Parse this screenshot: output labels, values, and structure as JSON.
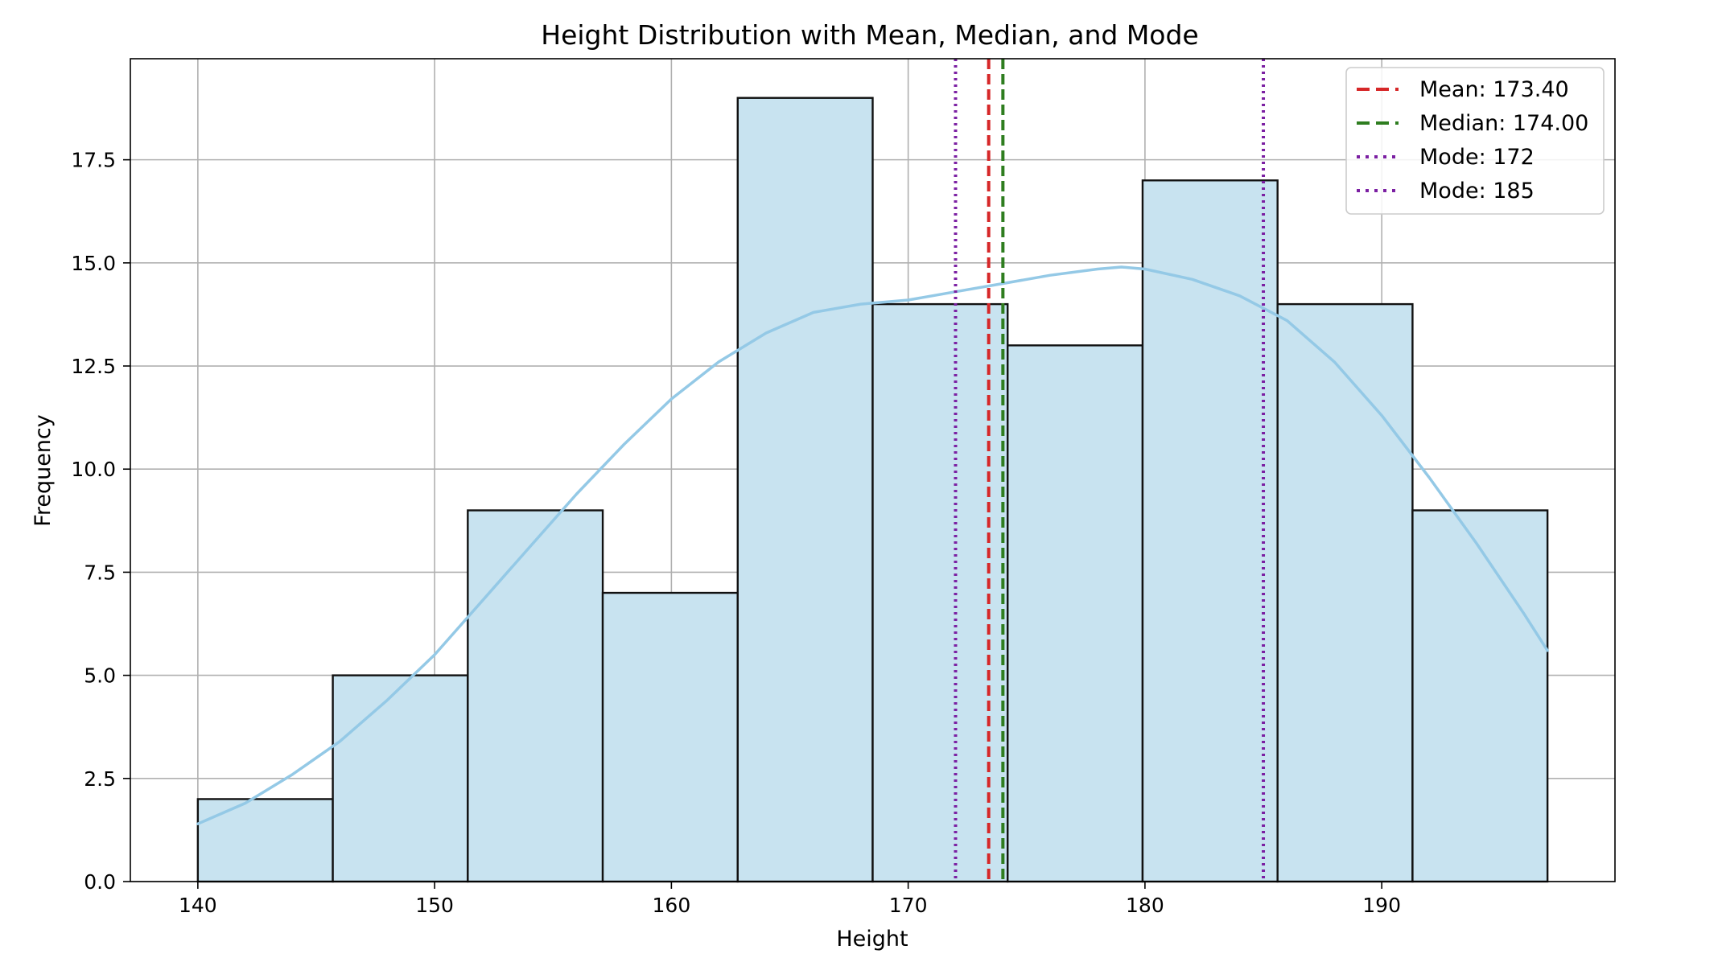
{
  "chart_data": {
    "type": "bar",
    "subtype": "histogram-with-kde",
    "title": "Height Distribution with Mean, Median, and Mode",
    "xlabel": "Height",
    "ylabel": "Frequency",
    "xlim": [
      137.15,
      199.85
    ],
    "ylim": [
      0,
      19.95
    ],
    "grid": true,
    "legend_position": "top-right",
    "x_ticks": [
      140,
      150,
      160,
      170,
      180,
      190
    ],
    "y_ticks": [
      0.0,
      2.5,
      5.0,
      7.5,
      10.0,
      12.5,
      15.0,
      17.5
    ],
    "x_tick_labels": [
      "140",
      "150",
      "160",
      "170",
      "180",
      "190"
    ],
    "y_tick_labels": [
      "0.0",
      "2.5",
      "5.0",
      "7.5",
      "10.0",
      "12.5",
      "15.0",
      "17.5"
    ],
    "bins": [
      {
        "start": 140.0,
        "end": 145.7,
        "count": 2
      },
      {
        "start": 145.7,
        "end": 151.4,
        "count": 5
      },
      {
        "start": 151.4,
        "end": 157.1,
        "count": 9
      },
      {
        "start": 157.1,
        "end": 162.8,
        "count": 7
      },
      {
        "start": 162.8,
        "end": 168.5,
        "count": 19
      },
      {
        "start": 168.5,
        "end": 174.2,
        "count": 14
      },
      {
        "start": 174.2,
        "end": 179.9,
        "count": 13
      },
      {
        "start": 179.9,
        "end": 185.6,
        "count": 17
      },
      {
        "start": 185.6,
        "end": 191.3,
        "count": 14
      },
      {
        "start": 191.3,
        "end": 197.0,
        "count": 9
      }
    ],
    "kde": {
      "x": [
        140,
        142,
        144,
        146,
        148,
        150,
        152,
        154,
        156,
        158,
        160,
        162,
        164,
        166,
        168,
        170,
        172,
        174,
        176,
        178,
        179,
        180,
        182,
        184,
        186,
        188,
        190,
        192,
        194,
        196,
        197
      ],
      "y": [
        1.4,
        1.9,
        2.6,
        3.4,
        4.4,
        5.5,
        6.8,
        8.1,
        9.4,
        10.6,
        11.7,
        12.6,
        13.3,
        13.8,
        14.0,
        14.1,
        14.3,
        14.5,
        14.7,
        14.85,
        14.9,
        14.85,
        14.6,
        14.2,
        13.6,
        12.6,
        11.3,
        9.8,
        8.2,
        6.5,
        5.6
      ]
    },
    "reference_lines": [
      {
        "label": "Mean: 173.40",
        "x": 173.4,
        "color": "#d62728",
        "style": "dashed"
      },
      {
        "label": "Median: 174.00",
        "x": 174.0,
        "color": "#2e7d1f",
        "style": "dashed"
      },
      {
        "label": "Mode: 172",
        "x": 172,
        "color": "#7b1fa2",
        "style": "dotted"
      },
      {
        "label": "Mode: 185",
        "x": 185,
        "color": "#7b1fa2",
        "style": "dotted"
      }
    ],
    "colors": {
      "bar_fill": "#c8e3f0",
      "bar_edge": "#111111",
      "kde_line": "#94c9e6",
      "grid": "#b0b0b0"
    }
  }
}
